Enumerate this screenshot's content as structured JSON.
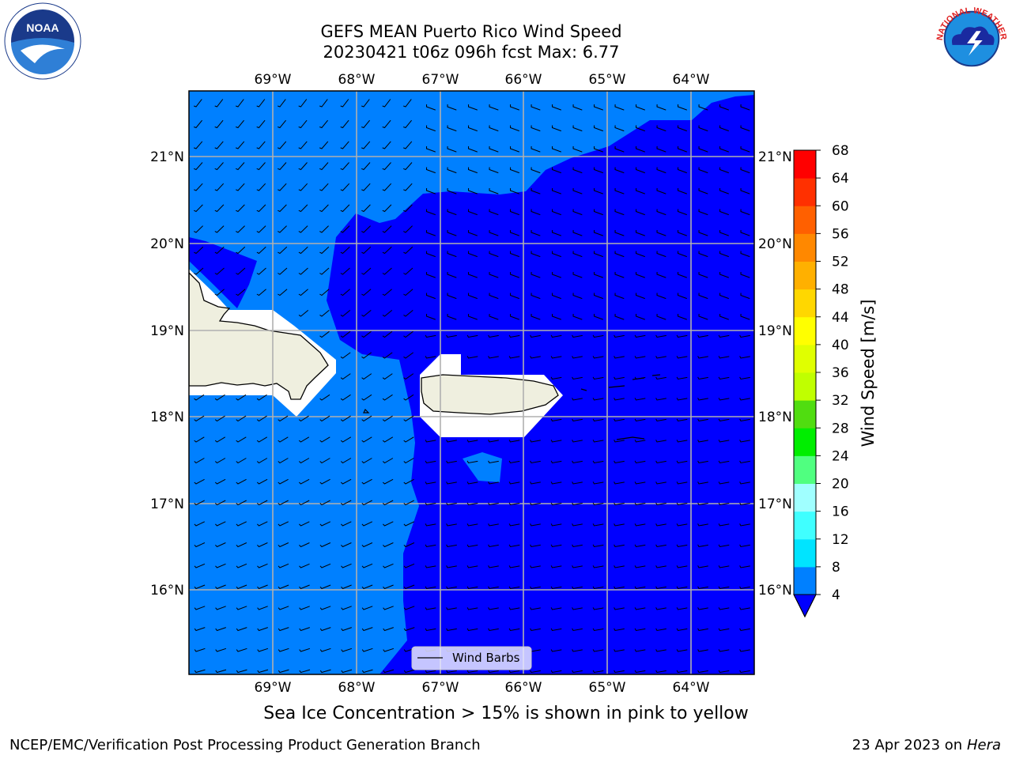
{
  "header": {
    "title_line1": "GEFS MEAN Puerto Rico Wind Speed",
    "title_line2": "20230421 t06z 096h fcst   Max: 6.77"
  },
  "logos": {
    "left": {
      "icon": "noaa-logo-icon",
      "text": "NOAA"
    },
    "right": {
      "icon": "nws-logo-icon",
      "text": "NATIONAL WEATHER SERVICE"
    }
  },
  "map": {
    "lon_ticks": [
      "69°W",
      "68°W",
      "67°W",
      "66°W",
      "65°W",
      "64°W"
    ],
    "lat_ticks": [
      "21°N",
      "20°N",
      "19°N",
      "18°N",
      "17°N",
      "16°N"
    ],
    "lon_range": [
      -70,
      -63.25
    ],
    "lat_range": [
      15,
      21.75
    ],
    "legend_label": "Wind Barbs",
    "fill_colors": {
      "band_4_8": "#0080ff",
      "band_below_4": "#0000ff",
      "land": "#efefdf",
      "masked": "#ffffff",
      "grid": "#b0b0b0"
    }
  },
  "colorbar": {
    "label": "Wind Speed [m/s]",
    "ticks": [
      "68",
      "64",
      "60",
      "56",
      "52",
      "48",
      "44",
      "40",
      "36",
      "32",
      "28",
      "24",
      "20",
      "16",
      "12",
      "8",
      "4"
    ],
    "colors": [
      "#0080ff",
      "#00e4ff",
      "#40ffff",
      "#a0ffff",
      "#50ff80",
      "#00ee00",
      "#50dd10",
      "#c0ff00",
      "#e0ff00",
      "#ffff00",
      "#ffd700",
      "#ffb000",
      "#ff8800",
      "#ff6000",
      "#ff3000",
      "#ff0000"
    ],
    "extend_color": "#0000ff"
  },
  "note": "Sea Ice Concentration > 15% is shown in pink to yellow",
  "footer": {
    "left": "NCEP/EMC/Verification Post Processing Product Generation Branch",
    "right_prefix": "23 Apr 2023 on ",
    "right_host": "Hera"
  }
}
